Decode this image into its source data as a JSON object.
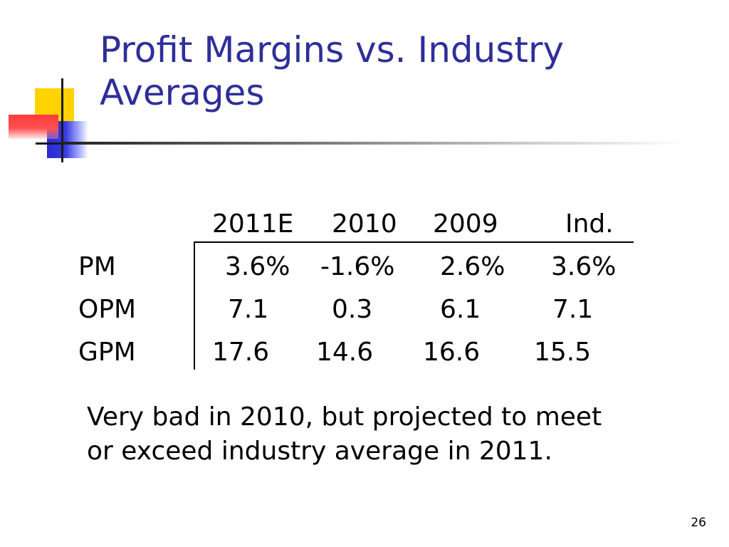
{
  "slide": {
    "title_line1": "Profit Margins vs. Industry",
    "title_line2": "Averages",
    "table": {
      "columns": [
        "2011E",
        "2010",
        "2009",
        "Ind."
      ],
      "rows": [
        {
          "label": "PM",
          "values": [
            "3.6%",
            "-1.6%",
            "2.6%",
            "3.6%"
          ]
        },
        {
          "label": "OPM",
          "values": [
            "7.1",
            "0.3",
            "6.1",
            "7.1"
          ]
        },
        {
          "label": "GPM",
          "values": [
            "17.6",
            "14.6",
            "16.6",
            "15.5"
          ]
        }
      ]
    },
    "note": "Very bad in 2010, but projected to meet or exceed industry average in 2011.",
    "page_number": "26"
  },
  "colors": {
    "title": "#2e2e9a",
    "logo_yellow": "#ffd200",
    "logo_blue": "#2a2ad6",
    "logo_red": "#ff3a3a"
  }
}
